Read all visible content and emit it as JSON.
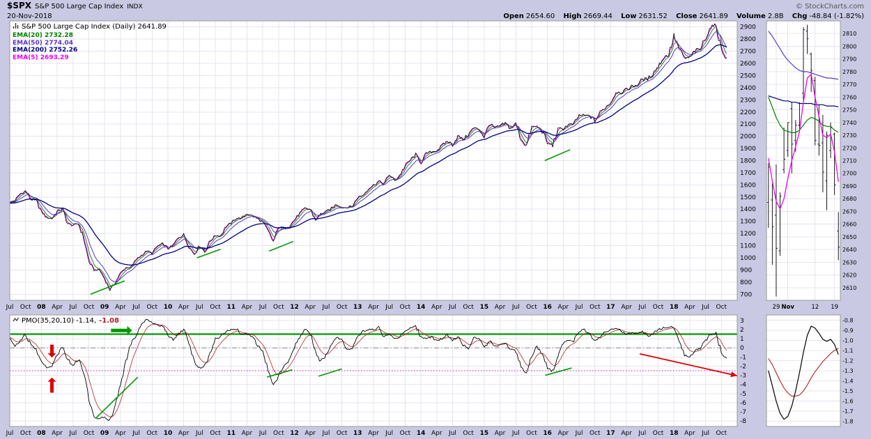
{
  "header": {
    "symbol": "$SPX",
    "title": "S&P 500 Large Cap Index",
    "exchange": "INDX",
    "date": "20-Nov-2018",
    "copyright": "© StockCharts.com",
    "quote": [
      {
        "label": "Open",
        "value": "2654.60"
      },
      {
        "label": "High",
        "value": "2669.44"
      },
      {
        "label": "Low",
        "value": "2631.52"
      },
      {
        "label": "Close",
        "value": "2641.89"
      },
      {
        "label": "Volume",
        "value": "2.8B"
      },
      {
        "label": "Chg",
        "value": "-48.84 (-1.82%)"
      }
    ]
  },
  "legend": {
    "main_title": "S&P 500 Large Cap Index (Daily) 2641.89",
    "emas": [
      {
        "label": "EMA(20) 2732.28",
        "color": "#008000"
      },
      {
        "label": "EMA(50) 2774.04",
        "color": "#5a35c8"
      },
      {
        "label": "EMA(200) 2752.26",
        "color": "#000080"
      },
      {
        "label": "EMA(5) 2693.29",
        "color": "#ee00ee"
      }
    ],
    "pmo_title": "PMO(35,20,10) -1.14,",
    "pmo_value2": "-1.08"
  },
  "colors": {
    "background": "#c9c9e4",
    "plot_bg": "#ffffff",
    "grid": "#e4e4ef",
    "border": "#999999",
    "price": "#000000",
    "ema5": "#ee00ee",
    "ema20": "#008000",
    "ema50": "#5a35c8",
    "ema200": "#000080",
    "pmo": "#000000",
    "pmo_signal": "#b22222",
    "annotation_green": "#009900",
    "annotation_red": "#dd0000",
    "zero_line": "#888888",
    "dotted_line": "#cc00cc"
  },
  "chart_data": {
    "main": {
      "type": "line",
      "title": "S&P 500 Large Cap Index (Daily)",
      "x_start": "Jul-2007",
      "x_end": "20-Nov-2018",
      "ylim": [
        650,
        2950
      ],
      "y_ticks": {
        "min": 700,
        "max": 2900,
        "step": 100
      },
      "x_ticks": [
        {
          "m": 0,
          "t": "Jul"
        },
        {
          "m": 3,
          "t": "Oct"
        },
        {
          "m": 6,
          "t": "08",
          "b": true
        },
        {
          "m": 9,
          "t": "Apr"
        },
        {
          "m": 12,
          "t": "Jul"
        },
        {
          "m": 15,
          "t": "Oct"
        },
        {
          "m": 18,
          "t": "09",
          "b": true
        },
        {
          "m": 21,
          "t": "Apr"
        },
        {
          "m": 24,
          "t": "Jul"
        },
        {
          "m": 27,
          "t": "Oct"
        },
        {
          "m": 30,
          "t": "10",
          "b": true
        },
        {
          "m": 33,
          "t": "Apr"
        },
        {
          "m": 36,
          "t": "Jul"
        },
        {
          "m": 39,
          "t": "Oct"
        },
        {
          "m": 42,
          "t": "11",
          "b": true
        },
        {
          "m": 45,
          "t": "Apr"
        },
        {
          "m": 48,
          "t": "Jul"
        },
        {
          "m": 51,
          "t": "Oct"
        },
        {
          "m": 54,
          "t": "12",
          "b": true
        },
        {
          "m": 57,
          "t": "Apr"
        },
        {
          "m": 60,
          "t": "Jul"
        },
        {
          "m": 63,
          "t": "Oct"
        },
        {
          "m": 66,
          "t": "13",
          "b": true
        },
        {
          "m": 69,
          "t": "Apr"
        },
        {
          "m": 72,
          "t": "Jul"
        },
        {
          "m": 75,
          "t": "Oct"
        },
        {
          "m": 78,
          "t": "14",
          "b": true
        },
        {
          "m": 81,
          "t": "Apr"
        },
        {
          "m": 84,
          "t": "Jul"
        },
        {
          "m": 87,
          "t": "Oct"
        },
        {
          "m": 90,
          "t": "15",
          "b": true
        },
        {
          "m": 93,
          "t": "Apr"
        },
        {
          "m": 96,
          "t": "Jul"
        },
        {
          "m": 99,
          "t": "Oct"
        },
        {
          "m": 102,
          "t": "16",
          "b": true
        },
        {
          "m": 105,
          "t": "Apr"
        },
        {
          "m": 108,
          "t": "Jul"
        },
        {
          "m": 111,
          "t": "Oct"
        },
        {
          "m": 114,
          "t": "17",
          "b": true
        },
        {
          "m": 117,
          "t": "Apr"
        },
        {
          "m": 120,
          "t": "Jul"
        },
        {
          "m": 123,
          "t": "Oct"
        },
        {
          "m": 126,
          "t": "18",
          "b": true
        },
        {
          "m": 129,
          "t": "Apr"
        },
        {
          "m": 132,
          "t": "Jul"
        },
        {
          "m": 135,
          "t": "Oct"
        }
      ],
      "monthly_close": [
        1455,
        1474,
        1527,
        1549,
        1481,
        1468,
        1379,
        1331,
        1323,
        1386,
        1400,
        1280,
        1267,
        1283,
        1166,
        969,
        896,
        903,
        826,
        735,
        798,
        873,
        919,
        919,
        987,
        1021,
        1057,
        1036,
        1096,
        1115,
        1074,
        1104,
        1169,
        1187,
        1089,
        1031,
        1102,
        1049,
        1141,
        1183,
        1181,
        1258,
        1286,
        1327,
        1326,
        1364,
        1345,
        1321,
        1292,
        1219,
        1131,
        1253,
        1247,
        1258,
        1312,
        1366,
        1408,
        1398,
        1310,
        1362,
        1379,
        1407,
        1441,
        1412,
        1416,
        1426,
        1498,
        1515,
        1569,
        1598,
        1631,
        1606,
        1686,
        1633,
        1682,
        1757,
        1806,
        1848,
        1783,
        1859,
        1872,
        1884,
        1924,
        1960,
        1931,
        2003,
        1972,
        2018,
        2068,
        2059,
        1995,
        2105,
        2068,
        2086,
        2107,
        2063,
        2104,
        1972,
        1920,
        2079,
        2080,
        2044,
        1940,
        1932,
        2060,
        2065,
        2097,
        2099,
        2174,
        2171,
        2168,
        2126,
        2199,
        2239,
        2279,
        2364,
        2363,
        2384,
        2412,
        2423,
        2470,
        2472,
        2519,
        2575,
        2648,
        2674,
        2824,
        2714,
        2641,
        2648,
        2705,
        2718,
        2816,
        2902,
        2914,
        2712,
        2642
      ],
      "ema_final_values": {
        "ema20": 2732.28,
        "ema50": 2774.04,
        "ema200": 2752.26,
        "ema5": 2693.29
      },
      "trendlines_green": [
        [
          15.3,
          700,
          21.8,
          810
        ],
        [
          35.5,
          1000,
          40,
          1070
        ],
        [
          49.2,
          1055,
          53.8,
          1135
        ],
        [
          101.5,
          1800,
          106.3,
          1890
        ]
      ]
    },
    "pmo_panel": {
      "type": "line",
      "title": "PMO(35,20,10)",
      "current": -1.14,
      "signal_current": -1.08,
      "ylim": [
        -8.6,
        3.6
      ],
      "y_ticks": {
        "min": -8,
        "max": 3,
        "step": 1
      },
      "monthly_pmo": [
        1.0,
        0.2,
        0.8,
        1.5,
        0.3,
        -0.2,
        -1.5,
        -2.2,
        -2.0,
        -0.8,
        0.2,
        -1.2,
        -2.0,
        -1.2,
        -2.5,
        -5.5,
        -7.5,
        -7.8,
        -7.5,
        -8.0,
        -6.5,
        -4.0,
        -1.5,
        0.5,
        1.5,
        2.5,
        3.2,
        2.8,
        2.5,
        2.3,
        1.5,
        0.8,
        1.5,
        2.0,
        0.5,
        -1.5,
        -2.2,
        -2.0,
        -0.5,
        1.0,
        1.2,
        1.8,
        2.0,
        2.1,
        1.5,
        1.6,
        1.2,
        0.3,
        -0.5,
        -2.5,
        -4.2,
        -3.0,
        -2.0,
        -1.5,
        0.0,
        1.2,
        2.0,
        1.6,
        -0.5,
        -1.5,
        -0.8,
        0.2,
        1.2,
        0.8,
        -0.2,
        0.0,
        1.2,
        1.8,
        2.0,
        2.0,
        2.2,
        1.2,
        1.5,
        1.0,
        1.2,
        1.8,
        2.2,
        2.3,
        1.2,
        1.0,
        1.2,
        0.8,
        1.0,
        1.5,
        0.8,
        1.2,
        0.3,
        0.0,
        1.2,
        1.0,
        0.0,
        0.8,
        0.2,
        0.3,
        0.6,
        -0.2,
        -0.3,
        -2.2,
        -2.8,
        -1.0,
        0.2,
        -0.8,
        -2.2,
        -2.6,
        -0.8,
        0.5,
        0.8,
        0.8,
        1.8,
        2.0,
        1.5,
        0.8,
        1.2,
        1.8,
        2.0,
        2.2,
        1.8,
        1.5,
        1.6,
        1.6,
        1.8,
        1.3,
        1.5,
        2.0,
        2.2,
        2.2,
        2.4,
        0.8,
        -0.8,
        -1.0,
        -0.3,
        0.0,
        0.8,
        1.5,
        1.6,
        -0.5,
        -1.14
      ],
      "hlines": [
        {
          "v": 1.5,
          "color": "#009900",
          "style": "solid",
          "width": 2.2
        },
        {
          "v": 0,
          "color": "#888888",
          "style": "dashdot",
          "width": 1
        },
        {
          "v": -2.5,
          "color": "#cc00cc",
          "style": "dotted",
          "width": 1
        }
      ],
      "trendlines_green": [
        [
          16.3,
          -7.7,
          24.3,
          -3.2
        ],
        [
          48.8,
          -3.2,
          53.6,
          -2.4
        ],
        [
          58.6,
          -3.1,
          63,
          -2.3
        ],
        [
          101.6,
          -3.0,
          106.6,
          -2.2
        ]
      ],
      "trendline_red": [
        119.5,
        -0.65,
        138,
        -3.05
      ],
      "arrows": [
        {
          "dir": "down",
          "m": 8,
          "from": 0.35,
          "to": -1.05,
          "color": "#dd0000"
        },
        {
          "dir": "up",
          "m": 8,
          "from": -4.9,
          "to": -3.25,
          "color": "#dd0000"
        },
        {
          "dir": "right",
          "m": 19.2,
          "to_m": 23.2,
          "v": 1.9,
          "color": "#009900"
        }
      ]
    },
    "inset_price": {
      "type": "ohlc",
      "ylim": [
        2600,
        2820
      ],
      "y_ticks": {
        "min": 2610,
        "max": 2810,
        "step": 10
      },
      "x_labels": [
        {
          "i": 2,
          "t": "29"
        },
        {
          "i": 5,
          "t": "Nov",
          "b": true
        },
        {
          "i": 12,
          "t": "12"
        },
        {
          "i": 17,
          "t": "19"
        }
      ],
      "ohlc": [
        [
          2677,
          2708,
          2657,
          2705
        ],
        [
          2679,
          2692,
          2628,
          2658
        ],
        [
          2667,
          2707,
          2603,
          2641
        ],
        [
          2639,
          2685,
          2635,
          2682
        ],
        [
          2703,
          2736,
          2700,
          2711
        ],
        [
          2718,
          2740,
          2713,
          2740
        ],
        [
          2751,
          2756,
          2700,
          2723
        ],
        [
          2726,
          2742,
          2717,
          2738
        ],
        [
          2738,
          2756,
          2732,
          2755
        ],
        [
          2763,
          2815,
          2757,
          2813
        ],
        [
          2812,
          2817,
          2794,
          2806
        ],
        [
          2794,
          2795,
          2764,
          2781
        ],
        [
          2773,
          2776,
          2722,
          2726
        ],
        [
          2723,
          2754,
          2714,
          2722
        ],
        [
          2724,
          2746,
          2685,
          2701
        ],
        [
          2694,
          2733,
          2671,
          2730
        ],
        [
          2718,
          2740,
          2712,
          2736
        ],
        [
          2731,
          2732,
          2683,
          2691
        ],
        [
          2654.6,
          2669.44,
          2631.52,
          2641.89
        ]
      ],
      "ema200": [
        2761,
        2760,
        2759,
        2758,
        2757,
        2757,
        2756,
        2756,
        2755,
        2755,
        2755,
        2755,
        2754,
        2754,
        2754,
        2753,
        2753,
        2753,
        2752.26
      ],
      "ema50": [
        2812,
        2808,
        2803,
        2798,
        2793,
        2789,
        2786,
        2783,
        2781,
        2780,
        2780,
        2779,
        2778,
        2777,
        2776,
        2775,
        2775,
        2774.5,
        2774.04
      ],
      "ema20": [
        2760,
        2752,
        2744,
        2738,
        2734,
        2733,
        2732,
        2732,
        2734,
        2738,
        2742,
        2744,
        2743,
        2741,
        2738,
        2737,
        2737,
        2734,
        2732.28
      ],
      "ema5": [
        2712,
        2694,
        2678,
        2672,
        2680,
        2696,
        2710,
        2721,
        2733,
        2756,
        2775,
        2778,
        2760,
        2745,
        2730,
        2728,
        2731,
        2717,
        2693.29
      ]
    },
    "inset_pmo": {
      "type": "line",
      "ylim": [
        -1.85,
        -0.75
      ],
      "y_ticks": {
        "min": -1.8,
        "max": -0.8,
        "step": 0.1
      },
      "pmo": [
        -1.3,
        -1.45,
        -1.6,
        -1.72,
        -1.78,
        -1.75,
        -1.65,
        -1.5,
        -1.32,
        -1.12,
        -0.95,
        -0.86,
        -0.88,
        -0.93,
        -0.99,
        -1.01,
        -0.99,
        -1.04,
        -1.14
      ],
      "signal": [
        -1.18,
        -1.24,
        -1.32,
        -1.4,
        -1.47,
        -1.52,
        -1.55,
        -1.55,
        -1.54,
        -1.5,
        -1.44,
        -1.37,
        -1.31,
        -1.26,
        -1.21,
        -1.17,
        -1.13,
        -1.1,
        -1.08
      ]
    }
  }
}
